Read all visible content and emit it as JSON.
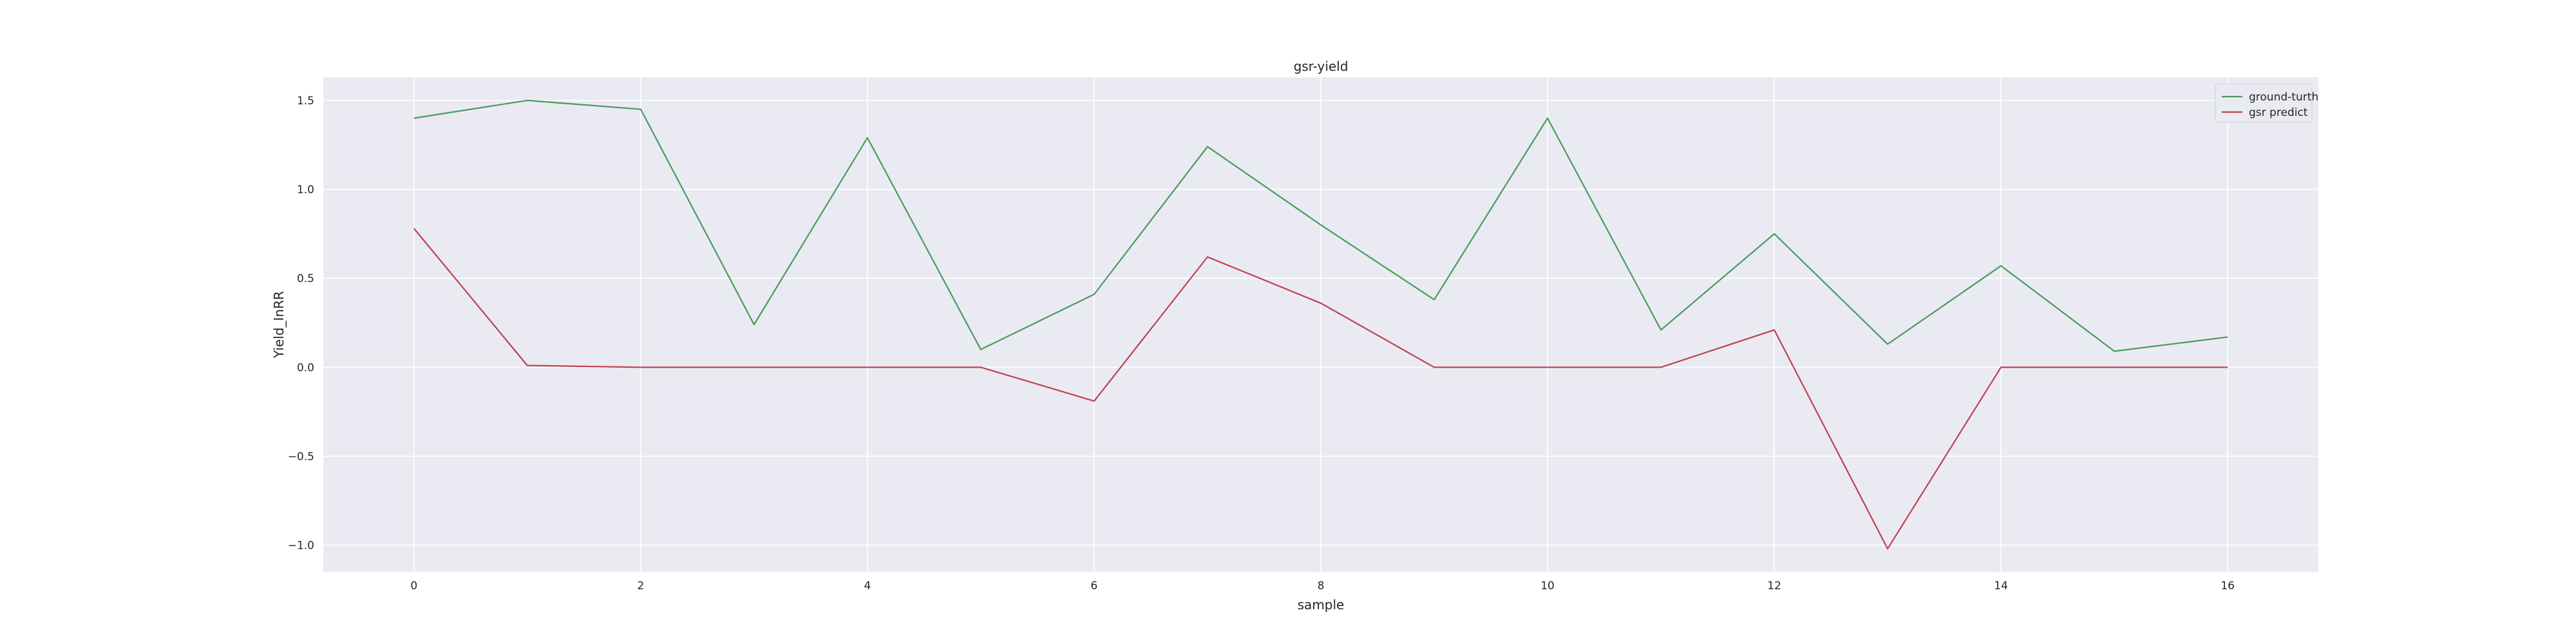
{
  "chart_data": {
    "type": "line",
    "title": "gsr-yield",
    "xlabel": "sample",
    "ylabel": "Yield_InRR",
    "x": [
      0,
      1,
      2,
      3,
      4,
      5,
      6,
      7,
      8,
      9,
      10,
      11,
      12,
      13,
      14,
      15,
      16
    ],
    "xlim": [
      -0.8,
      16.8
    ],
    "ylim": [
      -1.15,
      1.63
    ],
    "xticks": [
      0,
      2,
      4,
      6,
      8,
      10,
      12,
      14,
      16
    ],
    "yticks": [
      -1.0,
      -0.5,
      0.0,
      0.5,
      1.0,
      1.5
    ],
    "ytick_labels": [
      "−1.0",
      "−0.5",
      "0.0",
      "0.5",
      "1.0",
      "1.5"
    ],
    "grid": true,
    "legend_position": "top-right",
    "series": [
      {
        "name": "ground-turth",
        "color": "#4c9a5a",
        "values": [
          1.4,
          1.5,
          1.45,
          0.24,
          1.29,
          0.1,
          0.41,
          1.24,
          0.8,
          0.38,
          1.4,
          0.21,
          0.75,
          0.13,
          0.57,
          0.09,
          0.17
        ]
      },
      {
        "name": "gsr predict",
        "color": "#c0404e",
        "values": [
          0.78,
          0.01,
          0.0,
          0.0,
          0.0,
          0.0,
          -0.19,
          0.62,
          0.36,
          0.0,
          0.0,
          0.0,
          0.21,
          -1.02,
          0.0,
          0.0,
          0.0
        ]
      }
    ]
  }
}
